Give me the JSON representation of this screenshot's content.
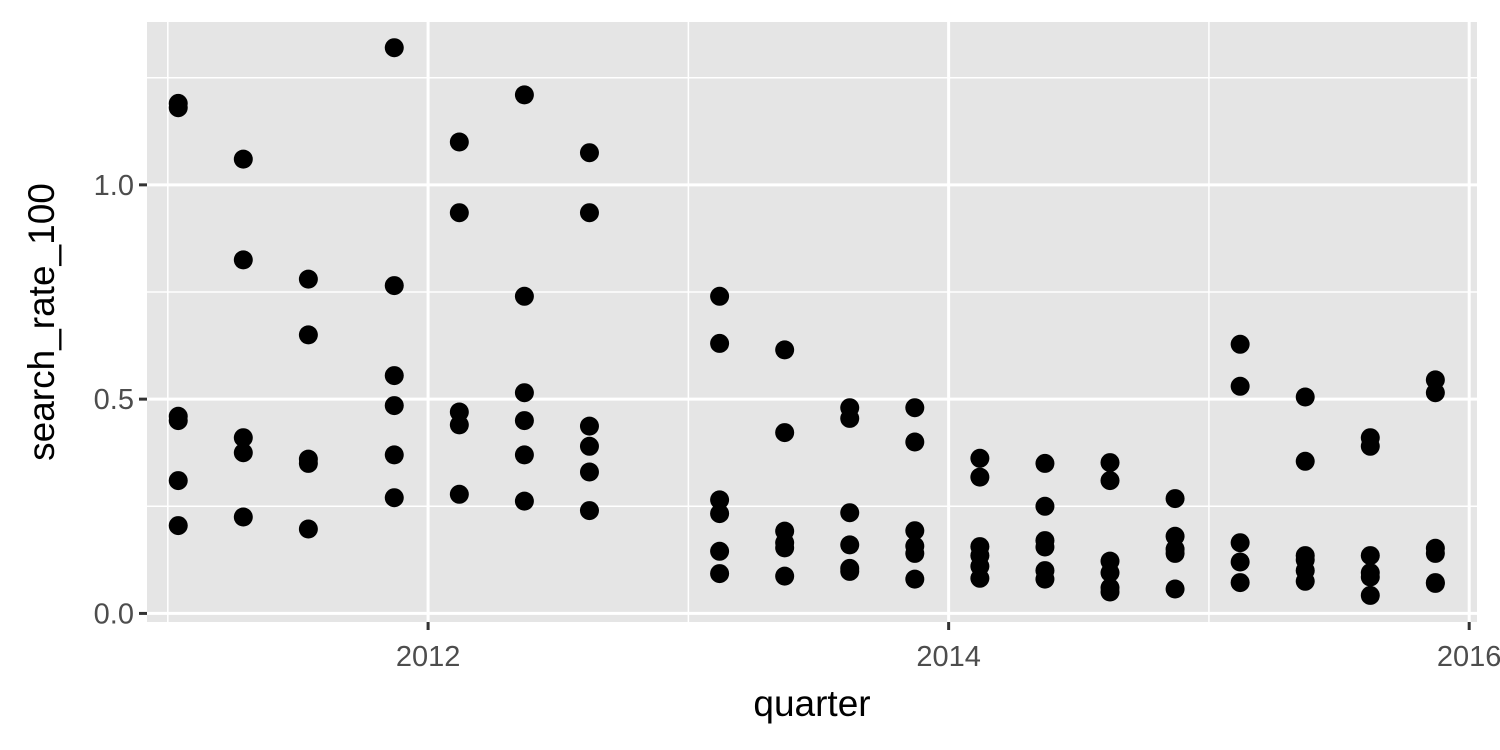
{
  "chart_data": {
    "type": "scatter",
    "title": "",
    "xlabel": "quarter",
    "ylabel": "search_rate_100",
    "xlim": [
      2010.92,
      2016.03
    ],
    "ylim": [
      -0.02,
      1.38
    ],
    "x_ticks": [
      2012,
      2014,
      2016
    ],
    "y_ticks": [
      0.0,
      0.5,
      1.0
    ],
    "x_tick_labels": [
      "2012",
      "2014",
      "2016"
    ],
    "y_tick_labels": [
      "0.0",
      "0.5",
      "1.0"
    ],
    "grid": true,
    "legend": "none",
    "colors": {
      "panel": "#e5e5e5",
      "grid": "#ffffff",
      "point": "#000000"
    },
    "points": [
      {
        "x": 2011.04,
        "y": 1.19
      },
      {
        "x": 2011.04,
        "y": 1.18
      },
      {
        "x": 2011.04,
        "y": 0.46
      },
      {
        "x": 2011.04,
        "y": 0.45
      },
      {
        "x": 2011.04,
        "y": 0.31
      },
      {
        "x": 2011.04,
        "y": 0.205
      },
      {
        "x": 2011.29,
        "y": 1.06
      },
      {
        "x": 2011.29,
        "y": 0.825
      },
      {
        "x": 2011.29,
        "y": 0.41
      },
      {
        "x": 2011.29,
        "y": 0.375
      },
      {
        "x": 2011.29,
        "y": 0.225
      },
      {
        "x": 2011.54,
        "y": 0.78
      },
      {
        "x": 2011.54,
        "y": 0.65
      },
      {
        "x": 2011.54,
        "y": 0.36
      },
      {
        "x": 2011.54,
        "y": 0.35
      },
      {
        "x": 2011.54,
        "y": 0.197
      },
      {
        "x": 2011.87,
        "y": 1.32
      },
      {
        "x": 2011.87,
        "y": 0.765
      },
      {
        "x": 2011.87,
        "y": 0.555
      },
      {
        "x": 2011.87,
        "y": 0.485
      },
      {
        "x": 2011.87,
        "y": 0.37
      },
      {
        "x": 2011.87,
        "y": 0.27
      },
      {
        "x": 2012.12,
        "y": 1.1
      },
      {
        "x": 2012.12,
        "y": 0.935
      },
      {
        "x": 2012.12,
        "y": 0.47
      },
      {
        "x": 2012.12,
        "y": 0.44
      },
      {
        "x": 2012.12,
        "y": 0.278
      },
      {
        "x": 2012.37,
        "y": 1.21
      },
      {
        "x": 2012.37,
        "y": 0.74
      },
      {
        "x": 2012.37,
        "y": 0.515
      },
      {
        "x": 2012.37,
        "y": 0.45
      },
      {
        "x": 2012.37,
        "y": 0.37
      },
      {
        "x": 2012.37,
        "y": 0.262
      },
      {
        "x": 2012.62,
        "y": 1.075
      },
      {
        "x": 2012.62,
        "y": 0.935
      },
      {
        "x": 2012.62,
        "y": 0.437
      },
      {
        "x": 2012.62,
        "y": 0.39
      },
      {
        "x": 2012.62,
        "y": 0.33
      },
      {
        "x": 2012.62,
        "y": 0.24
      },
      {
        "x": 2013.12,
        "y": 0.74
      },
      {
        "x": 2013.12,
        "y": 0.63
      },
      {
        "x": 2013.12,
        "y": 0.265
      },
      {
        "x": 2013.12,
        "y": 0.233
      },
      {
        "x": 2013.12,
        "y": 0.145
      },
      {
        "x": 2013.12,
        "y": 0.093
      },
      {
        "x": 2013.37,
        "y": 0.615
      },
      {
        "x": 2013.37,
        "y": 0.422
      },
      {
        "x": 2013.37,
        "y": 0.192
      },
      {
        "x": 2013.37,
        "y": 0.165
      },
      {
        "x": 2013.37,
        "y": 0.153
      },
      {
        "x": 2013.37,
        "y": 0.087
      },
      {
        "x": 2013.62,
        "y": 0.48
      },
      {
        "x": 2013.62,
        "y": 0.455
      },
      {
        "x": 2013.62,
        "y": 0.235
      },
      {
        "x": 2013.62,
        "y": 0.16
      },
      {
        "x": 2013.62,
        "y": 0.105
      },
      {
        "x": 2013.62,
        "y": 0.098
      },
      {
        "x": 2013.87,
        "y": 0.48
      },
      {
        "x": 2013.87,
        "y": 0.4
      },
      {
        "x": 2013.87,
        "y": 0.193
      },
      {
        "x": 2013.87,
        "y": 0.157
      },
      {
        "x": 2013.87,
        "y": 0.14
      },
      {
        "x": 2013.87,
        "y": 0.08
      },
      {
        "x": 2014.12,
        "y": 0.362
      },
      {
        "x": 2014.12,
        "y": 0.318
      },
      {
        "x": 2014.12,
        "y": 0.156
      },
      {
        "x": 2014.12,
        "y": 0.135
      },
      {
        "x": 2014.12,
        "y": 0.11
      },
      {
        "x": 2014.12,
        "y": 0.082
      },
      {
        "x": 2014.37,
        "y": 0.35
      },
      {
        "x": 2014.37,
        "y": 0.25
      },
      {
        "x": 2014.37,
        "y": 0.17
      },
      {
        "x": 2014.37,
        "y": 0.155
      },
      {
        "x": 2014.37,
        "y": 0.1
      },
      {
        "x": 2014.37,
        "y": 0.08
      },
      {
        "x": 2014.62,
        "y": 0.352
      },
      {
        "x": 2014.62,
        "y": 0.31
      },
      {
        "x": 2014.62,
        "y": 0.122
      },
      {
        "x": 2014.62,
        "y": 0.095
      },
      {
        "x": 2014.62,
        "y": 0.06
      },
      {
        "x": 2014.62,
        "y": 0.05
      },
      {
        "x": 2014.87,
        "y": 0.268
      },
      {
        "x": 2014.87,
        "y": 0.18
      },
      {
        "x": 2014.87,
        "y": 0.15
      },
      {
        "x": 2014.87,
        "y": 0.14
      },
      {
        "x": 2014.87,
        "y": 0.057
      },
      {
        "x": 2015.12,
        "y": 0.628
      },
      {
        "x": 2015.12,
        "y": 0.53
      },
      {
        "x": 2015.12,
        "y": 0.165
      },
      {
        "x": 2015.12,
        "y": 0.12
      },
      {
        "x": 2015.12,
        "y": 0.072
      },
      {
        "x": 2015.37,
        "y": 0.505
      },
      {
        "x": 2015.37,
        "y": 0.355
      },
      {
        "x": 2015.37,
        "y": 0.135
      },
      {
        "x": 2015.37,
        "y": 0.125
      },
      {
        "x": 2015.37,
        "y": 0.1
      },
      {
        "x": 2015.37,
        "y": 0.075
      },
      {
        "x": 2015.62,
        "y": 0.41
      },
      {
        "x": 2015.62,
        "y": 0.39
      },
      {
        "x": 2015.62,
        "y": 0.135
      },
      {
        "x": 2015.62,
        "y": 0.095
      },
      {
        "x": 2015.62,
        "y": 0.085
      },
      {
        "x": 2015.62,
        "y": 0.042
      },
      {
        "x": 2015.87,
        "y": 0.545
      },
      {
        "x": 2015.87,
        "y": 0.515
      },
      {
        "x": 2015.87,
        "y": 0.152
      },
      {
        "x": 2015.87,
        "y": 0.14
      },
      {
        "x": 2015.87,
        "y": 0.072
      },
      {
        "x": 2015.87,
        "y": 0.07
      }
    ]
  }
}
